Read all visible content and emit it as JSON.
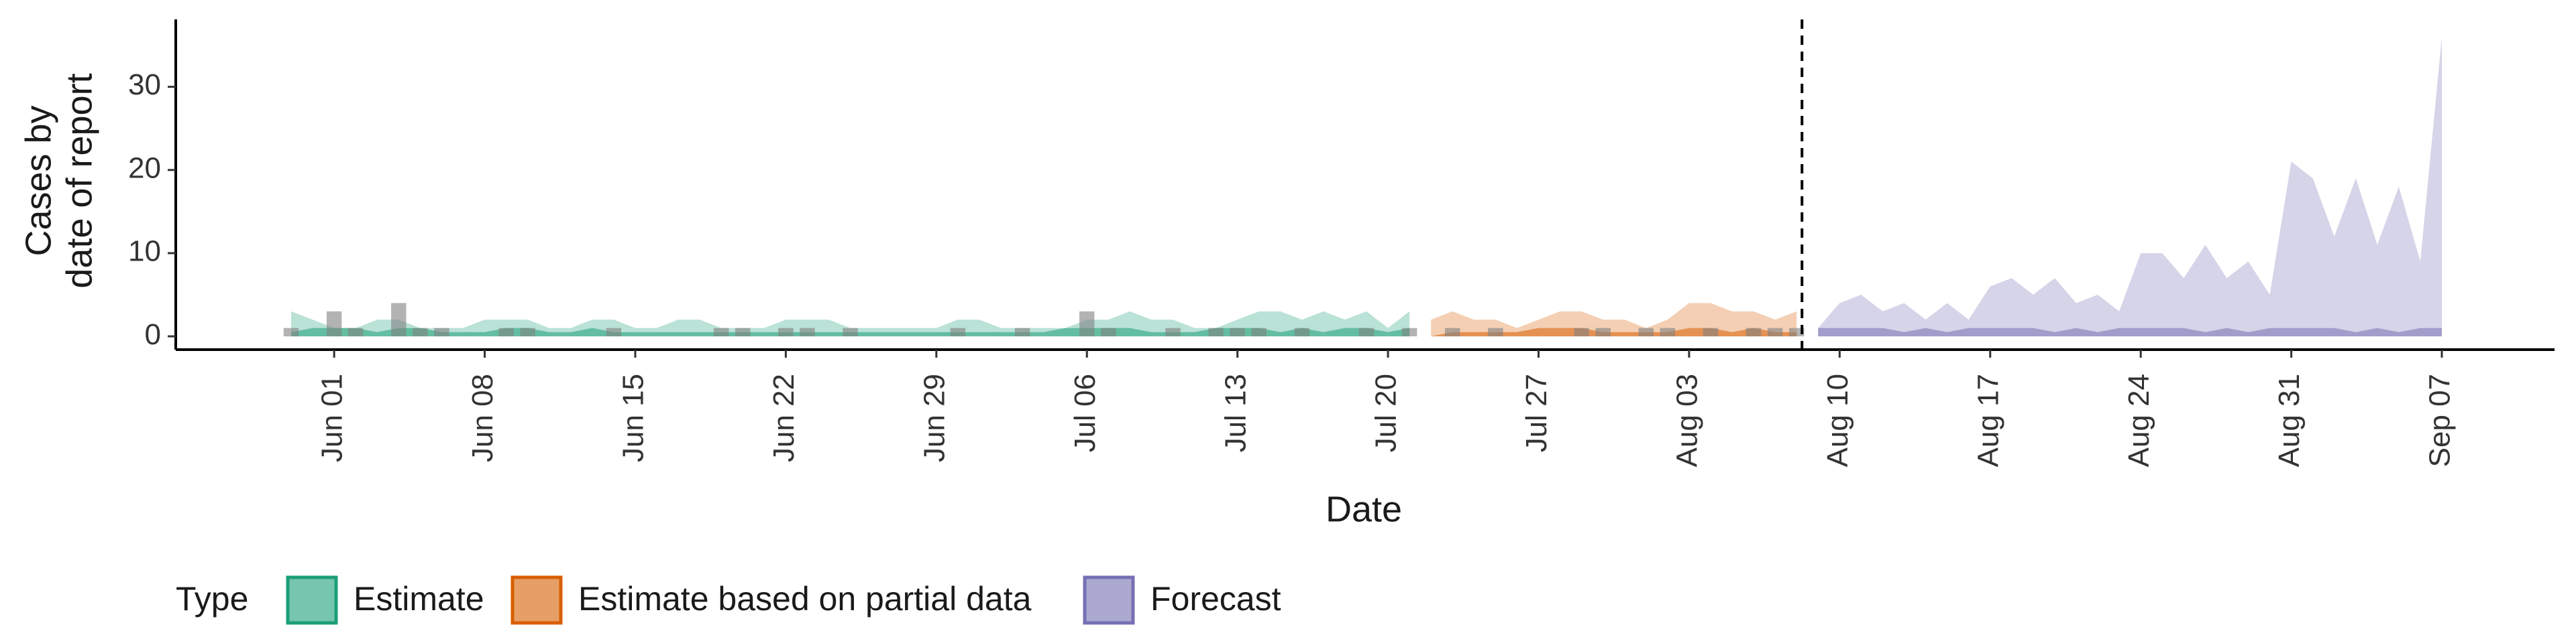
{
  "chart_data": {
    "type": "band",
    "xlabel": "Date",
    "ylabel": [
      "Cases by",
      "date of report"
    ],
    "legend_title": "Type",
    "x": [
      "May 30",
      "May 31",
      "Jun 01",
      "Jun 02",
      "Jun 03",
      "Jun 04",
      "Jun 05",
      "Jun 06",
      "Jun 07",
      "Jun 08",
      "Jun 09",
      "Jun 10",
      "Jun 11",
      "Jun 12",
      "Jun 13",
      "Jun 14",
      "Jun 15",
      "Jun 16",
      "Jun 17",
      "Jun 18",
      "Jun 19",
      "Jun 20",
      "Jun 21",
      "Jun 22",
      "Jun 23",
      "Jun 24",
      "Jun 25",
      "Jun 26",
      "Jun 27",
      "Jun 28",
      "Jun 29",
      "Jun 30",
      "Jul 01",
      "Jul 02",
      "Jul 03",
      "Jul 04",
      "Jul 05",
      "Jul 06",
      "Jul 07",
      "Jul 08",
      "Jul 09",
      "Jul 10",
      "Jul 11",
      "Jul 12",
      "Jul 13",
      "Jul 14",
      "Jul 15",
      "Jul 16",
      "Jul 17",
      "Jul 18",
      "Jul 19",
      "Jul 20",
      "Jul 21",
      "Jul 22",
      "Jul 23",
      "Jul 24",
      "Jul 25",
      "Jul 26",
      "Jul 27",
      "Jul 28",
      "Jul 29",
      "Jul 30",
      "Jul 31",
      "Aug 01",
      "Aug 02",
      "Aug 03",
      "Aug 04",
      "Aug 05",
      "Aug 06",
      "Aug 07",
      "Aug 08",
      "Aug 09",
      "Aug 10",
      "Aug 11",
      "Aug 12",
      "Aug 13",
      "Aug 14",
      "Aug 15",
      "Aug 16",
      "Aug 17",
      "Aug 18",
      "Aug 19",
      "Aug 20",
      "Aug 21",
      "Aug 22",
      "Aug 23",
      "Aug 24",
      "Aug 25",
      "Aug 26",
      "Aug 27",
      "Aug 28",
      "Aug 29",
      "Aug 30",
      "Aug 31",
      "Sep 01",
      "Sep 02",
      "Sep 03",
      "Sep 04",
      "Sep 05",
      "Sep 06",
      "Sep 07"
    ],
    "xticks": [
      "Jun 01",
      "Jun 08",
      "Jun 15",
      "Jun 22",
      "Jun 29",
      "Jul 06",
      "Jul 13",
      "Jul 20",
      "Jul 27",
      "Aug 03",
      "Aug 10",
      "Aug 17",
      "Aug 24",
      "Aug 31",
      "Sep 07"
    ],
    "ylim": [
      -1.6,
      38.1
    ],
    "yticks": [
      0,
      10,
      20,
      30
    ],
    "reported": {
      "color": "#808080",
      "values": [
        1,
        0,
        3,
        1,
        0,
        4,
        1,
        1,
        0,
        0,
        1,
        1,
        0,
        0,
        0,
        1,
        0,
        0,
        0,
        0,
        1,
        1,
        0,
        1,
        1,
        0,
        1,
        0,
        0,
        0,
        0,
        1,
        0,
        0,
        1,
        0,
        0,
        3,
        1,
        0,
        0,
        1,
        0,
        1,
        1,
        1,
        0,
        1,
        0,
        0,
        1,
        0,
        1,
        0,
        1,
        0,
        1,
        0,
        0,
        0,
        1,
        1,
        0,
        1,
        1,
        0,
        1,
        0,
        1,
        1,
        1,
        null,
        null,
        null,
        null,
        null,
        null,
        null,
        null,
        null,
        null,
        null,
        null,
        null,
        null,
        null,
        null,
        null,
        null,
        null,
        null,
        null,
        null,
        null,
        null,
        null,
        null,
        null,
        null,
        null,
        null
      ]
    },
    "series": [
      {
        "name": "Estimate",
        "color": "#1b9e77",
        "upper": [
          3,
          2,
          1,
          1,
          2,
          2,
          1,
          1,
          1,
          2,
          2,
          2,
          1,
          1,
          2,
          2,
          1,
          1,
          2,
          2,
          1,
          1,
          1,
          2,
          2,
          2,
          1,
          1,
          1,
          1,
          1,
          2,
          2,
          1,
          1,
          1,
          1,
          2,
          2,
          3,
          2,
          2,
          1,
          1,
          2,
          3,
          3,
          2,
          3,
          2,
          3,
          1,
          3,
          null,
          null,
          null,
          null,
          null,
          null,
          null,
          null,
          null,
          null,
          null,
          null,
          null,
          null,
          null,
          null,
          null,
          null,
          null,
          null,
          null,
          null,
          null,
          null,
          null,
          null,
          null,
          null,
          null,
          null,
          null,
          null,
          null,
          null,
          null,
          null,
          null,
          null,
          null,
          null,
          null,
          null,
          null,
          null,
          null,
          null,
          null,
          null
        ],
        "inner": [
          0.5,
          1,
          1,
          1,
          0.5,
          1,
          1,
          0.5,
          0.5,
          0.5,
          1,
          1,
          0.5,
          0.5,
          1,
          0.5,
          0.5,
          0.5,
          0.5,
          0.5,
          0.5,
          0.5,
          0.5,
          0.5,
          0.5,
          0.5,
          0.5,
          0.5,
          0.5,
          0.5,
          0.5,
          0.5,
          0.5,
          0.5,
          0.5,
          0.5,
          1,
          1,
          1,
          1,
          0.5,
          0.5,
          0.5,
          1,
          1,
          1,
          0.5,
          1,
          0.5,
          1,
          1,
          0.5,
          1,
          null,
          null,
          null,
          null,
          null,
          null,
          null,
          null,
          null,
          null,
          null,
          null,
          null,
          null,
          null,
          null,
          null,
          null,
          null,
          null,
          null,
          null,
          null,
          null,
          null,
          null,
          null,
          null,
          null,
          null,
          null,
          null,
          null,
          null,
          null,
          null,
          null,
          null,
          null,
          null,
          null,
          null,
          null,
          null,
          null,
          null,
          null,
          null
        ]
      },
      {
        "name": "Estimate based on partial data",
        "color": "#d95f02",
        "upper": [
          null,
          null,
          null,
          null,
          null,
          null,
          null,
          null,
          null,
          null,
          null,
          null,
          null,
          null,
          null,
          null,
          null,
          null,
          null,
          null,
          null,
          null,
          null,
          null,
          null,
          null,
          null,
          null,
          null,
          null,
          null,
          null,
          null,
          null,
          null,
          null,
          null,
          null,
          null,
          null,
          null,
          null,
          null,
          null,
          null,
          null,
          null,
          null,
          null,
          null,
          null,
          null,
          null,
          2,
          3,
          2,
          2,
          1,
          2,
          3,
          3,
          2,
          2,
          1,
          2,
          4,
          4,
          3,
          3,
          2,
          3,
          null,
          null,
          null,
          null,
          null,
          null,
          null,
          null,
          null,
          null,
          null,
          null,
          null,
          null,
          null,
          null,
          null,
          null,
          null,
          null,
          null,
          null,
          null,
          null,
          null,
          null,
          null,
          null,
          null,
          null
        ],
        "inner": [
          null,
          null,
          null,
          null,
          null,
          null,
          null,
          null,
          null,
          null,
          null,
          null,
          null,
          null,
          null,
          null,
          null,
          null,
          null,
          null,
          null,
          null,
          null,
          null,
          null,
          null,
          null,
          null,
          null,
          null,
          null,
          null,
          null,
          null,
          null,
          null,
          null,
          null,
          null,
          null,
          null,
          null,
          null,
          null,
          null,
          null,
          null,
          null,
          null,
          null,
          null,
          null,
          null,
          0,
          0.5,
          0.5,
          0.5,
          0.5,
          1,
          1,
          1,
          0.5,
          0.5,
          0.5,
          0.5,
          1,
          1,
          0.5,
          1,
          0.5,
          0.5,
          null,
          null,
          null,
          null,
          null,
          null,
          null,
          null,
          null,
          null,
          null,
          null,
          null,
          null,
          null,
          null,
          null,
          null,
          null,
          null,
          null,
          null,
          null,
          null,
          null,
          null,
          null,
          null,
          null,
          null
        ]
      },
      {
        "name": "Forecast",
        "color": "#7570b3",
        "upper": [
          null,
          null,
          null,
          null,
          null,
          null,
          null,
          null,
          null,
          null,
          null,
          null,
          null,
          null,
          null,
          null,
          null,
          null,
          null,
          null,
          null,
          null,
          null,
          null,
          null,
          null,
          null,
          null,
          null,
          null,
          null,
          null,
          null,
          null,
          null,
          null,
          null,
          null,
          null,
          null,
          null,
          null,
          null,
          null,
          null,
          null,
          null,
          null,
          null,
          null,
          null,
          null,
          null,
          null,
          null,
          null,
          null,
          null,
          null,
          null,
          null,
          null,
          null,
          null,
          null,
          null,
          null,
          null,
          null,
          null,
          null,
          1,
          4,
          5,
          3,
          4,
          2,
          4,
          2,
          6,
          7,
          5,
          7,
          4,
          5,
          3,
          10,
          10,
          7,
          11,
          7,
          9,
          5,
          21,
          19,
          12,
          19,
          11,
          18,
          9,
          36
        ],
        "inner": [
          null,
          null,
          null,
          null,
          null,
          null,
          null,
          null,
          null,
          null,
          null,
          null,
          null,
          null,
          null,
          null,
          null,
          null,
          null,
          null,
          null,
          null,
          null,
          null,
          null,
          null,
          null,
          null,
          null,
          null,
          null,
          null,
          null,
          null,
          null,
          null,
          null,
          null,
          null,
          null,
          null,
          null,
          null,
          null,
          null,
          null,
          null,
          null,
          null,
          null,
          null,
          null,
          null,
          null,
          null,
          null,
          null,
          null,
          null,
          null,
          null,
          null,
          null,
          null,
          null,
          null,
          null,
          null,
          null,
          null,
          null,
          1,
          1,
          1,
          1,
          0.5,
          1,
          0.5,
          1,
          1,
          1,
          1,
          0.5,
          1,
          0.5,
          1,
          1,
          1,
          1,
          0.5,
          1,
          0.5,
          1,
          1,
          1,
          1,
          0.5,
          1,
          0.5,
          1,
          1
        ]
      }
    ]
  }
}
